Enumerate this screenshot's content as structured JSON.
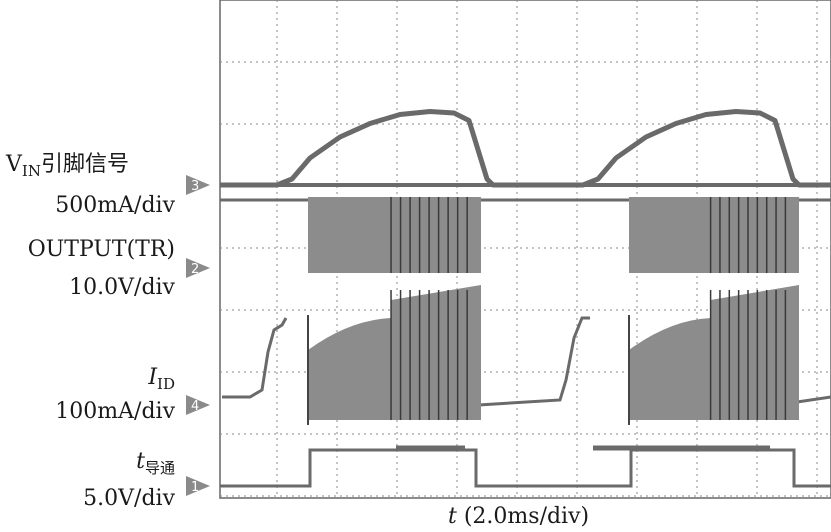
{
  "chart_data": {
    "type": "line",
    "chart_kind": "oscilloscope",
    "x_axis": {
      "variable": "t",
      "label": "(2.0ms/div)",
      "per_div_ms": 2.0,
      "divisions": 10
    },
    "grid": true,
    "channels": [
      {
        "id": "3",
        "marker": "3",
        "name_main": "V",
        "name_sub": "IN",
        "name_rest": "引脚信号",
        "scale": "500mA/div",
        "points": [
          [
            0.0,
            3.1
          ],
          [
            1.9,
            3.1
          ],
          [
            2.4,
            3.3
          ],
          [
            3.0,
            4.0
          ],
          [
            4.0,
            4.7
          ],
          [
            5.0,
            5.15
          ],
          [
            6.0,
            5.45
          ],
          [
            7.0,
            5.55
          ],
          [
            7.8,
            5.5
          ],
          [
            8.3,
            5.25
          ],
          [
            8.9,
            3.3
          ],
          [
            9.1,
            3.1
          ],
          [
            12.0,
            3.1
          ]
        ]
      },
      {
        "id": "2",
        "marker": "2",
        "name": "OUTPUT(TR)",
        "scale": "10.0V/div",
        "bursts": [
          [
            2.8,
            9.0
          ],
          [
            13.5,
            19.6
          ]
        ],
        "low": 2.5,
        "high": 3.9
      },
      {
        "id": "4",
        "marker": "4",
        "name_main": "I",
        "name_sub": "ID",
        "scale": "100mA/div",
        "bursts": [
          [
            2.8,
            9.0
          ],
          [
            13.5,
            19.6
          ]
        ],
        "baseline_end": -0.35,
        "ramp_peak": 0.9
      },
      {
        "id": "1",
        "marker": "1",
        "name_main": "t",
        "name_sub": "导通",
        "scale": "5.0V/div",
        "high_intervals": [
          [
            2.8,
            9.0
          ],
          [
            13.5,
            19.6
          ]
        ],
        "low": 0,
        "high": 1.0
      }
    ]
  }
}
